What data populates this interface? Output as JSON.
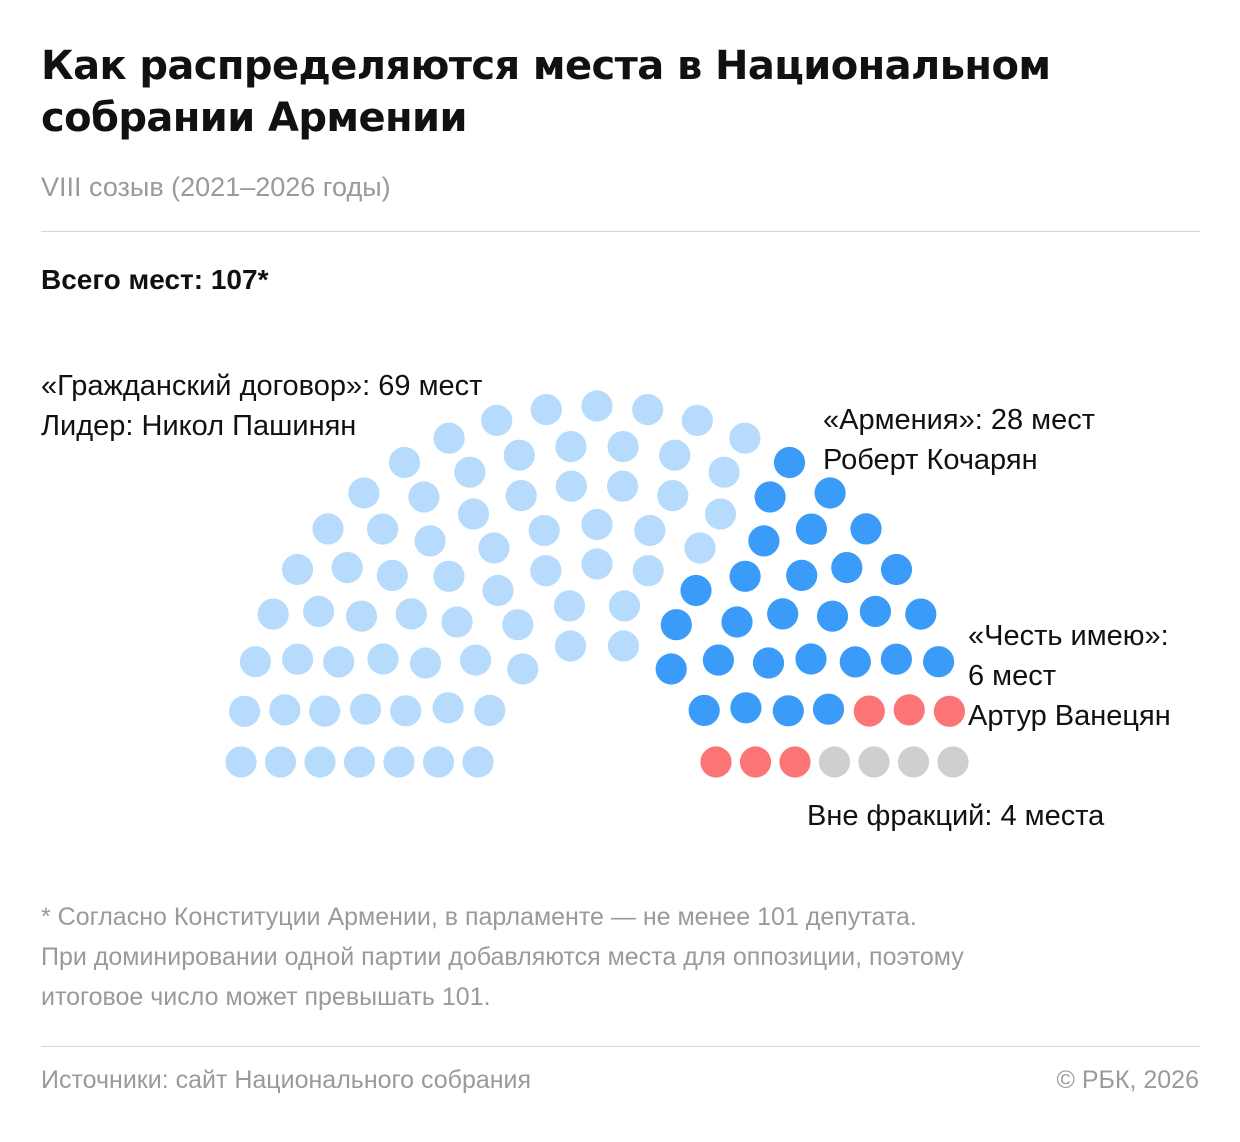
{
  "header": {
    "title": "Как распределяются места в Национальном собрании Армении",
    "subtitle": "VIII созыв (2021–2026 годы)",
    "total": "Всего мест: 107*"
  },
  "labels": {
    "civil_contract": [
      "«Гражданский договор»: 69 мест",
      "Лидер: Никол Пашинян"
    ],
    "armenia": [
      "«Армения»: 28 мест",
      "Роберт Кочарян"
    ],
    "honor": [
      "«Честь имею»:",
      "6 мест",
      "Артур Ванецян"
    ],
    "independent": [
      "Вне фракций: 4 места"
    ]
  },
  "footnote": [
    "* Согласно Конституции Армении, в парламенте — не менее 101 депутата.",
    "При доминировании одной партии добавляются места для оппозиции, поэтому",
    "итоговое число может превышать 101."
  ],
  "footer": {
    "source": "Источники: сайт Национального собрания",
    "copyright": "© РБК, 2026"
  },
  "chart_data": {
    "type": "parliament",
    "total_seats": 107,
    "series": [
      {
        "name": "«Гражданский договор»",
        "seats": 69,
        "color": "#b7dbfd"
      },
      {
        "name": "«Армения»",
        "seats": 28,
        "color": "#3a9bf8"
      },
      {
        "name": "«Честь имею»",
        "seats": 6,
        "color": "#fb7476"
      },
      {
        "name": "Вне фракций",
        "seats": 4,
        "color": "#cfcfcf"
      }
    ]
  }
}
